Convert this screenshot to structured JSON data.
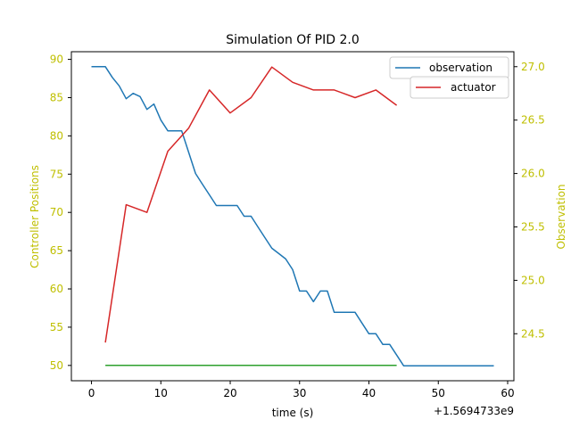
{
  "chart_data": {
    "type": "line",
    "title": "Simulation Of PID 2.0",
    "xlabel": "time (s)",
    "x_offset_label": "+1.5694733e9",
    "ylabel_left": "Controller Positions",
    "ylabel_right": "Observation",
    "xlim": [
      -2.9,
      60.9
    ],
    "ylim_left": [
      48,
      91
    ],
    "ylim_right": [
      24.06,
      27.14
    ],
    "x_ticks": [
      0,
      10,
      20,
      30,
      40,
      50,
      60
    ],
    "y_left_ticks": [
      50,
      55,
      60,
      65,
      70,
      75,
      80,
      85,
      90
    ],
    "y_right_ticks": [
      24.5,
      25.0,
      25.5,
      26.0,
      26.5,
      27.0
    ],
    "y_right_tick_labels": [
      "24.5",
      "25.0",
      "25.5",
      "26.0",
      "26.5",
      "27.0"
    ],
    "axis_label_color": "#bfbf00",
    "grid": false,
    "legend": [
      "top-right"
    ],
    "series": [
      {
        "name": "observation",
        "axis": "right",
        "color": "#1f77b4",
        "points": [
          [
            0,
            27.0
          ],
          [
            2,
            27.0
          ],
          [
            3,
            26.9
          ],
          [
            4,
            26.82
          ],
          [
            5,
            26.7
          ],
          [
            6,
            26.75
          ],
          [
            7,
            26.72
          ],
          [
            8,
            26.6
          ],
          [
            9,
            26.65
          ],
          [
            10,
            26.5
          ],
          [
            11,
            26.4
          ],
          [
            12,
            26.4
          ],
          [
            13,
            26.4
          ],
          [
            14,
            26.2
          ],
          [
            15,
            26.0
          ],
          [
            16,
            25.9
          ],
          [
            17,
            25.8
          ],
          [
            18,
            25.7
          ],
          [
            19,
            25.7
          ],
          [
            20,
            25.7
          ],
          [
            21,
            25.7
          ],
          [
            22,
            25.6
          ],
          [
            23,
            25.6
          ],
          [
            24,
            25.5
          ],
          [
            25,
            25.4
          ],
          [
            26,
            25.3
          ],
          [
            27,
            25.25
          ],
          [
            28,
            25.2
          ],
          [
            29,
            25.1
          ],
          [
            30,
            24.9
          ],
          [
            31,
            24.9
          ],
          [
            32,
            24.8
          ],
          [
            33,
            24.9
          ],
          [
            34,
            24.9
          ],
          [
            35,
            24.7
          ],
          [
            36,
            24.7
          ],
          [
            37,
            24.7
          ],
          [
            38,
            24.7
          ],
          [
            39,
            24.6
          ],
          [
            40,
            24.5
          ],
          [
            41,
            24.5
          ],
          [
            42,
            24.4
          ],
          [
            43,
            24.4
          ],
          [
            44,
            24.3
          ],
          [
            45,
            24.2
          ],
          [
            46,
            24.2
          ],
          [
            50,
            24.2
          ],
          [
            55,
            24.2
          ],
          [
            58,
            24.2
          ]
        ]
      },
      {
        "name": "actuator",
        "axis": "left",
        "color": "#d62728",
        "points": [
          [
            2,
            53
          ],
          [
            5,
            71
          ],
          [
            8,
            70
          ],
          [
            11,
            78
          ],
          [
            14,
            81
          ],
          [
            17,
            86
          ],
          [
            20,
            83
          ],
          [
            23,
            85
          ],
          [
            26,
            89
          ],
          [
            29,
            87
          ],
          [
            32,
            86
          ],
          [
            35,
            86
          ],
          [
            38,
            85
          ],
          [
            41,
            86
          ],
          [
            44,
            84
          ]
        ]
      },
      {
        "name": "",
        "axis": "left",
        "color": "#2ca02c",
        "points": [
          [
            2,
            50
          ],
          [
            44,
            50
          ]
        ]
      }
    ]
  }
}
